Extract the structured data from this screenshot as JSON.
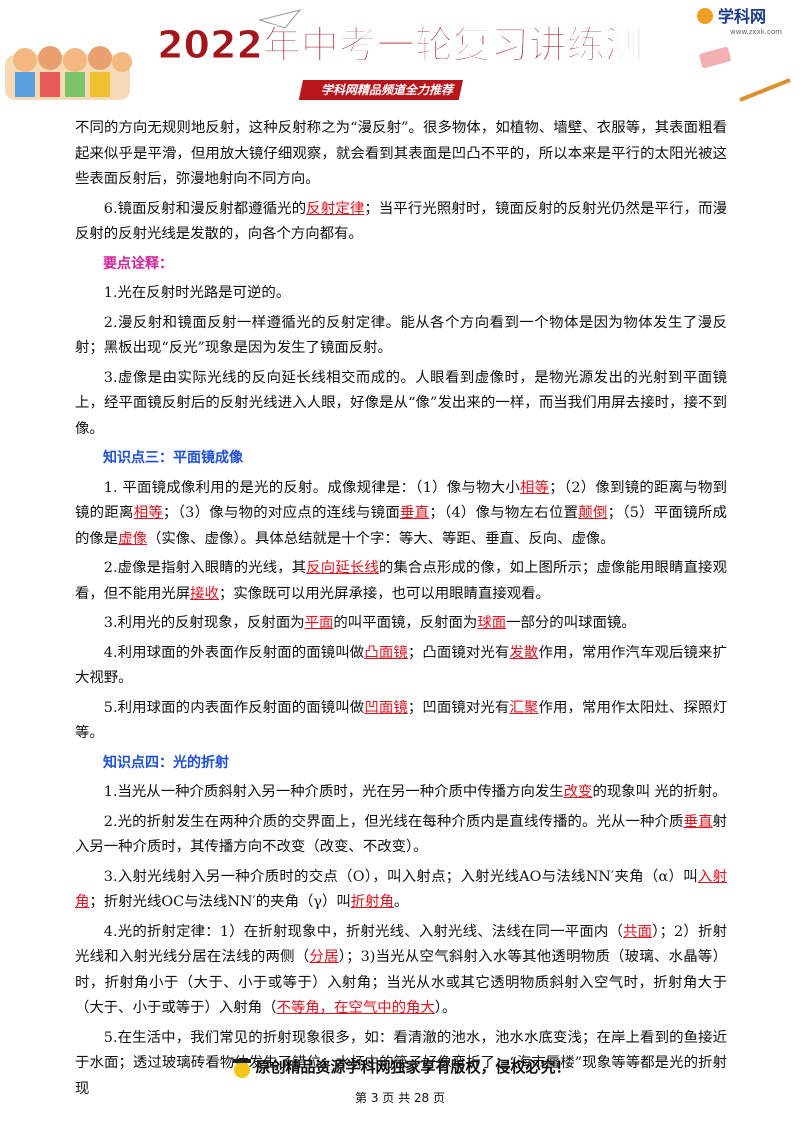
{
  "header": {
    "title": "2022年中考一轮复习讲练测",
    "subtitle": "学科网精品频道全力推荐",
    "logo": "学科网",
    "logo_url": "www.zxxk.com"
  },
  "blocks": [
    {
      "segments": [
        "不同的方向无规则地反射，这种反射称之为“漫反射”。很多物体，如植物、墙壁、衣服等，其表面粗看起来似乎是平滑，但用放大镜仔细观察，就会看到其表面是凹凸不平的，所以本来是平行的太阳光被这些表面反射后，弥漫地射向不同方向。"
      ]
    },
    {
      "segments": [
        "6.镜面反射和漫反射都遵循光的",
        "反射定律",
        "；当平行光照射时，镜面反射的反射光仍然是平行，而漫反射的反射光线是发散的，向各个方向都有。"
      ]
    },
    {
      "heading": "要点诠释：",
      "color": "#d0239b"
    },
    {
      "segments": [
        "1.光在反射时光路是可逆的。"
      ]
    },
    {
      "segments": [
        "2.漫反射和镜面反射一样遵循光的反射定律。能从各个方向看到一个物体是因为物体发生了漫反射；黑板出现“反光”现象是因为发生了镜面反射。"
      ]
    },
    {
      "segments": [
        "3.虚像是由实际光线的反向延长线相交而成的。人眼看到虚像时，是物光源发出的光射到平面镜上，经平面镜反射后的反射光线进入人眼，好像是从“像”发出来的一样，而当我们用屏去接时，接不到像。"
      ]
    },
    {
      "heading": "知识点三：平面镜成像",
      "color": "#1f4fd6"
    },
    {
      "segments": [
        "1. 平面镜成像利用的是光的反射。成像规律是：（1）像与物大小",
        "相等",
        "；（2）像到镜的距离与物到镜的距离",
        "相等",
        "；（3）像与物的对应点的连线与镜面",
        "垂直",
        "；（4）像与物左右位置",
        "颠倒",
        "；（5）平面镜所成的像是",
        "虚像",
        "（实像、虚像）。具体总结就是十个字：等大、等距、垂直、反向、虚像。"
      ]
    },
    {
      "segments": [
        "2.虚像是指射入眼睛的光线，其",
        "反向延长线",
        "的集合点形成的像，如上图所示；虚像能用眼睛直接观看，但不能用光屏",
        "接收",
        "；实像既可以用光屏承接，也可以用眼睛直接观看。"
      ]
    },
    {
      "segments": [
        "3.利用光的反射现象，反射面为",
        "平面",
        "的叫平面镜，反射面为",
        "球面",
        "一部分的叫球面镜。"
      ]
    },
    {
      "segments": [
        "4.利用球面的外表面作反射面的面镜叫做",
        "凸面镜",
        "；凸面镜对光有",
        "发散",
        "作用，常用作汽车观后镜来扩大视野。"
      ]
    },
    {
      "segments": [
        "5.利用球面的内表面作反射面的面镜叫做",
        "凹面镜",
        "；凹面镜对光有",
        "汇聚",
        "作用，常用作太阳灶、探照灯等。"
      ]
    },
    {
      "heading": "知识点四：光的折射",
      "color": "#1f4fd6"
    },
    {
      "segments": [
        "1.当光从一种介质斜射入另一种介质时，光在另一种介质中传播方向发生",
        "改变",
        "的现象叫 光的折射。"
      ]
    },
    {
      "segments": [
        "2.光的折射发生在两种介质的交界面上，但光线在每种介质内是直线传播的。光从一种介质",
        "垂直",
        "射入另一种介质时，其传播方向不改变（改变、不改变）。"
      ]
    },
    {
      "segments": [
        "3.入射光线射入另一种介质时的交点（O），叫入射点；入射光线AO与法线NN′夹角（α）叫",
        "入射角",
        "；折射光线OC与法线NN′的夹角（γ）叫",
        "折射角",
        "。"
      ]
    },
    {
      "segments": [
        "4.光的折射定律：1）在折射现象中，折射光线、入射光线、法线在同一平面内（",
        "共面",
        "）；2）折射光线和入射光线分居在法线的两侧（",
        "分居",
        "）；3)当光从空气斜射入水等其他透明物质（玻璃、水晶等）时，折射角小于（大于、小于或等于）入射角；当光从水或其它透明物质斜射入空气时，折射角大于（大于、小于或等于）入射角（",
        "不等角，在空气中的角大",
        "）。"
      ]
    },
    {
      "segments": [
        "5.在生活中，我们常见的折射现象很多，如：看清澈的池水，池水水底变浅；在岸上看到的鱼接近于水面；透过玻璃砖看物体发生了错位；水杯中的筷子好像弯折了；“海市蜃楼”现象等等都是光的折射现"
      ]
    }
  ],
  "footer": {
    "notice": "原创精品资源学科网独家享有版权，侵权必究！",
    "page": "第 3 页 共 28 页"
  }
}
